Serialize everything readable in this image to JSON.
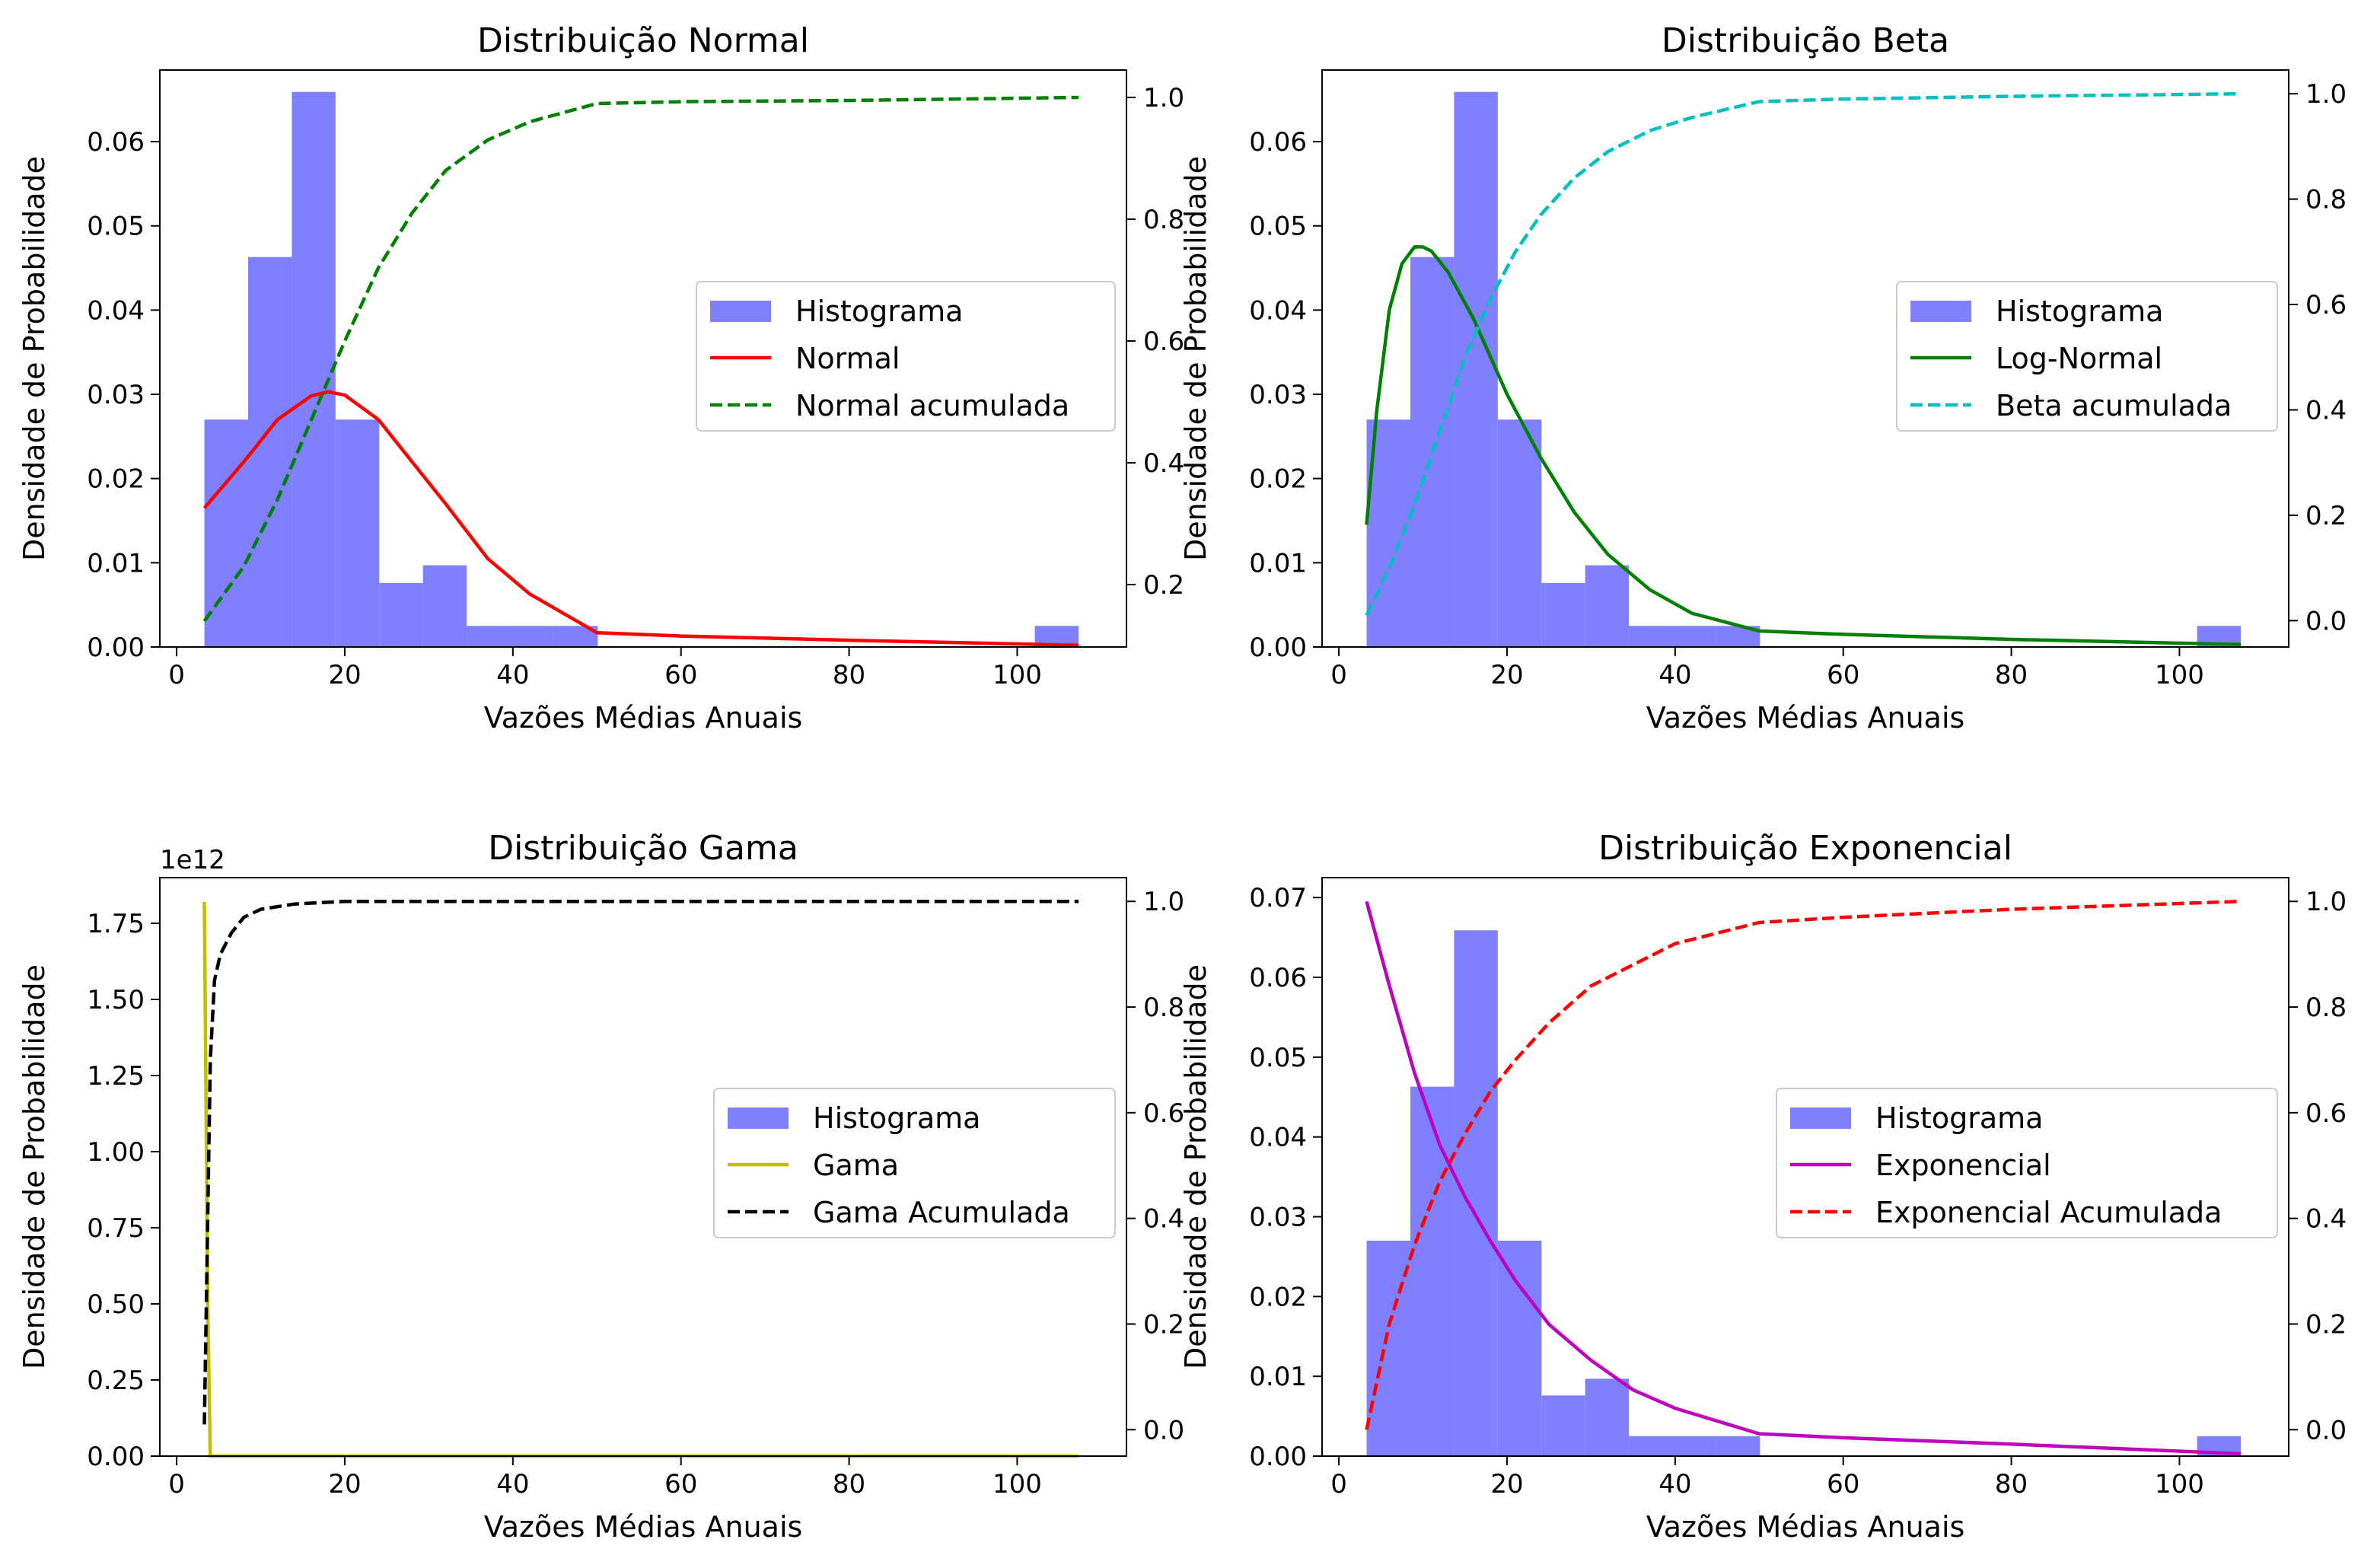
{
  "chart_data": [
    {
      "type": "bar",
      "title": "Distribuição Normal",
      "xlabel": "Vazões Médias Anuais",
      "ylabel": "Densidade de Probabilidade",
      "xlim": [
        -2,
        113
      ],
      "ylim": [
        0,
        0.0685
      ],
      "y2lim": [
        0.0975,
        1.045
      ],
      "xticks": [
        "0",
        "20",
        "40",
        "60",
        "80",
        "100"
      ],
      "yticks": [
        "0.00",
        "0.01",
        "0.02",
        "0.03",
        "0.04",
        "0.05",
        "0.06"
      ],
      "y2ticks": [
        "0.2",
        "0.4",
        "0.6",
        "0.8",
        "1.0"
      ],
      "y_offset_label": "",
      "histogram": {
        "name": "Histograma",
        "bin_edges": [
          3.3,
          8.5,
          13.7,
          18.9,
          24.1,
          29.3,
          34.5,
          39.7,
          44.9,
          50.1,
          55.3,
          60.5,
          65.7,
          70.9,
          76.1,
          81.3,
          86.5,
          91.7,
          96.9,
          102.1,
          107.3
        ],
        "values": [
          0.027,
          0.0463,
          0.0659,
          0.027,
          0.0076,
          0.0097,
          0.0025,
          0.0025,
          0.0025,
          0,
          0,
          0,
          0,
          0,
          0,
          0,
          0,
          0,
          0,
          0.0025
        ]
      },
      "pdf": {
        "name": "Normal",
        "x": [
          3.3,
          8,
          12,
          16,
          18,
          20,
          24,
          28,
          32,
          37,
          42,
          50,
          60,
          80,
          107.3
        ],
        "values": [
          0.0165,
          0.022,
          0.027,
          0.0298,
          0.0303,
          0.0299,
          0.027,
          0.022,
          0.017,
          0.0105,
          0.0063,
          0.0017,
          0.0013,
          0.0008,
          0.0002
        ]
      },
      "cdf": {
        "name": "Normal acumulada",
        "x": [
          3.3,
          8,
          12,
          16,
          20,
          24,
          28,
          32,
          37,
          42,
          50,
          60,
          80,
          107.3
        ],
        "values": [
          0.14,
          0.23,
          0.34,
          0.47,
          0.6,
          0.72,
          0.81,
          0.88,
          0.93,
          0.96,
          0.99,
          0.993,
          0.995,
          1.0
        ]
      },
      "colors": {
        "hist": "#8080ff",
        "pdf": "#ff0000",
        "cdf": "#008000"
      },
      "legend_position": "center-right"
    },
    {
      "type": "bar",
      "title": "Distribuição Beta",
      "xlabel": "Vazões Médias Anuais",
      "ylabel": "Densidade de Probabilidade",
      "xlim": [
        -2,
        113
      ],
      "ylim": [
        0,
        0.0685
      ],
      "y2lim": [
        -0.05,
        1.045
      ],
      "xticks": [
        "0",
        "20",
        "40",
        "60",
        "80",
        "100"
      ],
      "yticks": [
        "0.00",
        "0.01",
        "0.02",
        "0.03",
        "0.04",
        "0.05",
        "0.06"
      ],
      "y2ticks": [
        "0.0",
        "0.2",
        "0.4",
        "0.6",
        "0.8",
        "1.0"
      ],
      "y_offset_label": "",
      "histogram": {
        "name": "Histograma",
        "bin_edges": [
          3.3,
          8.5,
          13.7,
          18.9,
          24.1,
          29.3,
          34.5,
          39.7,
          44.9,
          50.1,
          55.3,
          60.5,
          65.7,
          70.9,
          76.1,
          81.3,
          86.5,
          91.7,
          96.9,
          102.1,
          107.3
        ],
        "values": [
          0.027,
          0.0463,
          0.0659,
          0.027,
          0.0076,
          0.0097,
          0.0025,
          0.0025,
          0.0025,
          0,
          0,
          0,
          0,
          0,
          0,
          0,
          0,
          0,
          0,
          0.0025
        ]
      },
      "pdf": {
        "name": "Log-Normal",
        "x": [
          3.3,
          4.5,
          6,
          7.5,
          9,
          10,
          11,
          13,
          16,
          20,
          24,
          28,
          32,
          37,
          42,
          50,
          60,
          80,
          107.3
        ],
        "values": [
          0.0145,
          0.028,
          0.04,
          0.0455,
          0.0475,
          0.0475,
          0.047,
          0.0445,
          0.039,
          0.03,
          0.0225,
          0.016,
          0.011,
          0.0068,
          0.004,
          0.0019,
          0.0015,
          0.0009,
          0.0003
        ]
      },
      "cdf": {
        "name": "Beta acumulada",
        "x": [
          3.3,
          6,
          9,
          12,
          15,
          18,
          21,
          24,
          28,
          32,
          37,
          42,
          50,
          60,
          80,
          107.3
        ],
        "values": [
          0.01,
          0.1,
          0.22,
          0.36,
          0.5,
          0.61,
          0.7,
          0.77,
          0.84,
          0.89,
          0.93,
          0.955,
          0.985,
          0.99,
          0.995,
          1.0
        ]
      },
      "colors": {
        "hist": "#8080ff",
        "pdf": "#008000",
        "cdf": "#00bfbf"
      },
      "legend_position": "center-right"
    },
    {
      "type": "bar",
      "title": "Distribuição Gama",
      "xlabel": "Vazões Médias Anuais",
      "ylabel": "Densidade de Probabilidade",
      "xlim": [
        -2,
        113
      ],
      "ylim": [
        0,
        1.9
      ],
      "y2lim": [
        -0.05,
        1.045
      ],
      "xticks": [
        "0",
        "20",
        "40",
        "60",
        "80",
        "100"
      ],
      "yticks": [
        "0.00",
        "0.25",
        "0.50",
        "0.75",
        "1.00",
        "1.25",
        "1.50",
        "1.75"
      ],
      "y2ticks": [
        "0.0",
        "0.2",
        "0.4",
        "0.6",
        "0.8",
        "1.0"
      ],
      "y_offset_label": "1e12",
      "histogram": {
        "name": "Histograma",
        "bin_edges": [],
        "values": []
      },
      "pdf": {
        "name": "Gama",
        "x": [
          3.3,
          3.7,
          4.0,
          107.3
        ],
        "values": [
          1.82,
          0.5,
          0,
          0
        ]
      },
      "cdf": {
        "name": "Gama Acumulada",
        "x": [
          3.3,
          3.6,
          4.0,
          4.5,
          5.2,
          6.5,
          8,
          10,
          14,
          20,
          40,
          107.3
        ],
        "values": [
          0.01,
          0.3,
          0.7,
          0.85,
          0.9,
          0.94,
          0.97,
          0.985,
          0.995,
          1.0,
          1.0,
          1.0
        ]
      },
      "colors": {
        "hist": "#8080ff",
        "pdf": "#bfbf00",
        "cdf": "#000000"
      },
      "legend_position": "center-right"
    },
    {
      "type": "bar",
      "title": "Distribuição Exponencial",
      "xlabel": "Vazões Médias Anuais",
      "ylabel": "Densidade de Probabilidade",
      "xlim": [
        -2,
        113
      ],
      "ylim": [
        0,
        0.0725
      ],
      "y2lim": [
        -0.05,
        1.045
      ],
      "xticks": [
        "0",
        "20",
        "40",
        "60",
        "80",
        "100"
      ],
      "yticks": [
        "0.00",
        "0.01",
        "0.02",
        "0.03",
        "0.04",
        "0.05",
        "0.06",
        "0.07"
      ],
      "y2ticks": [
        "0.0",
        "0.2",
        "0.4",
        "0.6",
        "0.8",
        "1.0"
      ],
      "y_offset_label": "",
      "histogram": {
        "name": "Histograma",
        "bin_edges": [
          3.3,
          8.5,
          13.7,
          18.9,
          24.1,
          29.3,
          34.5,
          39.7,
          44.9,
          50.1,
          55.3,
          60.5,
          65.7,
          70.9,
          76.1,
          81.3,
          86.5,
          91.7,
          96.9,
          102.1,
          107.3
        ],
        "values": [
          0.027,
          0.0463,
          0.0659,
          0.027,
          0.0076,
          0.0097,
          0.0025,
          0.0025,
          0.0025,
          0,
          0,
          0,
          0,
          0,
          0,
          0,
          0,
          0,
          0,
          0.0025
        ]
      },
      "pdf": {
        "name": "Exponencial",
        "x": [
          3.3,
          6,
          9,
          12,
          15,
          18,
          21,
          25,
          30,
          35,
          40,
          50,
          60,
          80,
          107.3
        ],
        "values": [
          0.0695,
          0.059,
          0.048,
          0.039,
          0.0325,
          0.027,
          0.022,
          0.0165,
          0.012,
          0.0083,
          0.006,
          0.0028,
          0.0023,
          0.0015,
          0.0003
        ]
      },
      "cdf": {
        "name": "Exponencial Acumulada",
        "x": [
          3.3,
          6,
          9,
          12,
          15,
          18,
          21,
          25,
          30,
          35,
          40,
          50,
          60,
          80,
          107.3
        ],
        "values": [
          0.0,
          0.2,
          0.35,
          0.47,
          0.56,
          0.64,
          0.7,
          0.77,
          0.84,
          0.88,
          0.92,
          0.96,
          0.97,
          0.985,
          1.0
        ]
      },
      "colors": {
        "hist": "#8080ff",
        "pdf": "#bf00bf",
        "cdf": "#ff0000"
      },
      "legend_position": "center-right"
    }
  ]
}
